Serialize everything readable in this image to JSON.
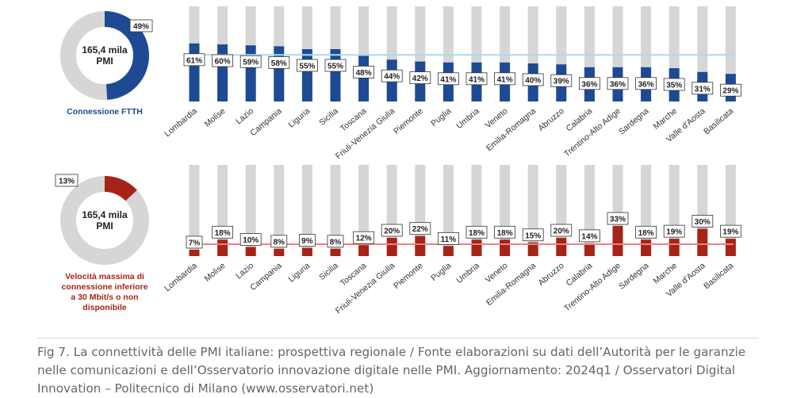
{
  "colors": {
    "ftth": "#1e4a94",
    "slow": "#a52417",
    "track": "#d6d6d6",
    "ftth_avg_line": "#a8dcf0",
    "slow_avg_line": "#f07f80",
    "label_border": "#333333"
  },
  "charts": [
    {
      "donut": {
        "center_text": [
          "165,4 mila",
          "PMI"
        ],
        "percent": 49,
        "percent_label": "49%"
      },
      "caption_lines": [
        "Connessione FTTH"
      ]
    },
    {
      "donut": {
        "center_text": [
          "165,4 mila",
          "PMI"
        ],
        "percent": 13,
        "percent_label": "13%"
      },
      "caption_lines": [
        "Velocità massima di",
        "connessione inferiore",
        "a 30 Mbit/s o non",
        "disponibile"
      ]
    }
  ],
  "chart_data": [
    {
      "type": "bar",
      "title": "Connessione FTTH",
      "categories": [
        "Lombardia",
        "Molise",
        "Lazio",
        "Campania",
        "Liguria",
        "Sicilia",
        "Toscana",
        "Friuli-Venezia Giulia",
        "Piemonte",
        "Puglia",
        "Umbria",
        "Veneto",
        "Emilia-Romagna",
        "Abruzzo",
        "Calabria",
        "Trentino-Alto Adige",
        "Sardegna",
        "Marche",
        "Valle d'Aosta",
        "Basilicata"
      ],
      "values": [
        61,
        60,
        59,
        58,
        55,
        55,
        48,
        44,
        42,
        41,
        41,
        41,
        40,
        39,
        36,
        36,
        36,
        35,
        31,
        29
      ],
      "value_labels": [
        "61%",
        "60%",
        "59%",
        "58%",
        "55%",
        "55%",
        "48%",
        "44%",
        "42%",
        "41%",
        "41%",
        "41%",
        "40%",
        "39%",
        "36%",
        "36%",
        "36%",
        "35%",
        "31%",
        "29%"
      ],
      "ylim": [
        0,
        100
      ],
      "reference_line": 49
    },
    {
      "type": "bar",
      "title": "Velocità massima di connessione inferiore a 30 Mbit/s o non disponibile",
      "categories": [
        "Lombardia",
        "Molise",
        "Lazio",
        "Campania",
        "Liguria",
        "Sicilia",
        "Toscana",
        "Friuli-Venezia Giulia",
        "Piemonte",
        "Puglia",
        "Umbria",
        "Veneto",
        "Emilia-Romagna",
        "Abruzzo",
        "Calabria",
        "Trentino-Alto Adige",
        "Sardegna",
        "Marche",
        "Valle d'Aosta",
        "Basilicata"
      ],
      "values": [
        7,
        18,
        10,
        8,
        9,
        8,
        12,
        20,
        22,
        11,
        18,
        18,
        15,
        20,
        14,
        33,
        18,
        19,
        30,
        19
      ],
      "value_labels": [
        "7%",
        "18%",
        "10%",
        "8%",
        "9%",
        "8%",
        "12%",
        "20%",
        "22%",
        "11%",
        "18%",
        "18%",
        "15%",
        "20%",
        "14%",
        "33%",
        "18%",
        "19%",
        "30%",
        "19%"
      ],
      "ylim": [
        0,
        100
      ],
      "reference_line": 13
    }
  ],
  "figure_caption": "Fig 7. La connettività delle PMI italiane: prospettiva regionale / Fonte elaborazioni su dati dell’Autorità per le garanzie nelle comunicazioni e dell’Osservatorio innovazione digitale nelle PMI. Aggiornamento: 2024q1 / Osservatori Digital Innovation – Politecnico di Milano (www.osservatori.net)"
}
